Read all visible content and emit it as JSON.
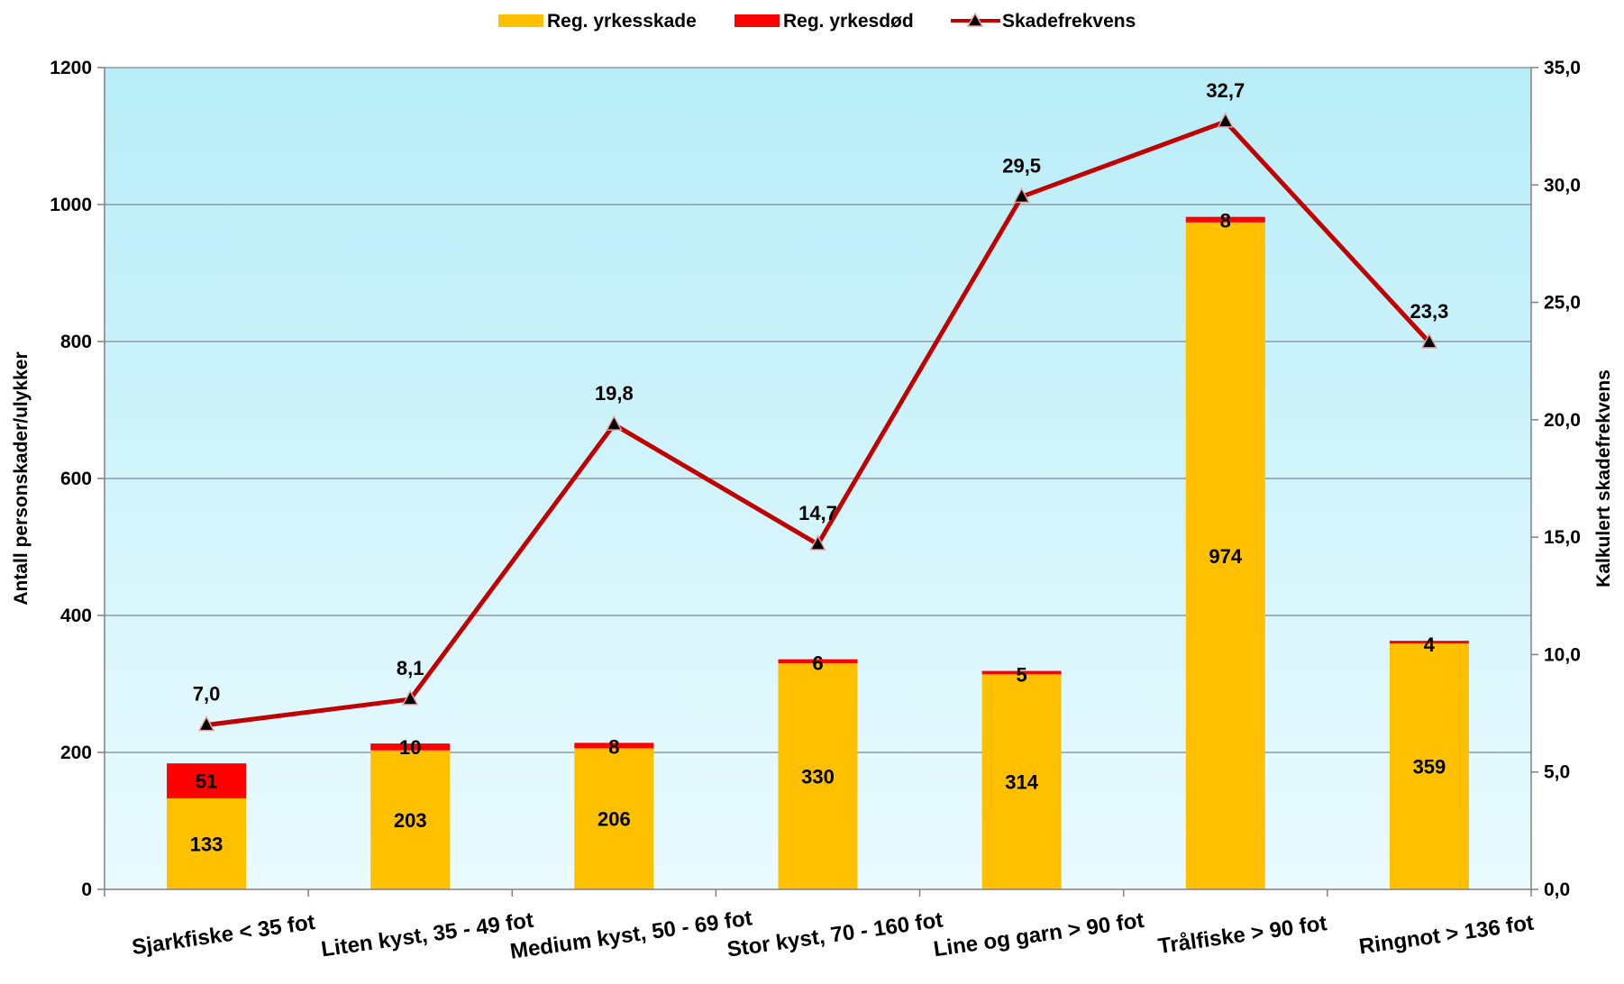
{
  "chart_data": {
    "type": "bar",
    "stacked": true,
    "categories": [
      "Sjarkfiske < 35 fot",
      "Liten kyst, 35 - 49 fot",
      "Medium kyst, 50 - 69 fot",
      "Stor kyst, 70 - 160 fot",
      "Line og garn > 90 fot",
      "Trålfiske > 90 fot",
      "Ringnot > 136 fot"
    ],
    "series": [
      {
        "name": "Reg. yrkesskade",
        "kind": "bar",
        "axis": "left",
        "color": "#FFC000",
        "values": [
          133,
          203,
          206,
          330,
          314,
          974,
          359
        ],
        "labels": [
          "133",
          "203",
          "206",
          "330",
          "314",
          "974",
          "359"
        ]
      },
      {
        "name": "Reg. yrkesdød",
        "kind": "bar",
        "axis": "left",
        "color": "#FF0000",
        "values": [
          51,
          10,
          8,
          6,
          5,
          8,
          4
        ],
        "labels": [
          "51",
          "10",
          "8",
          "6",
          "5",
          "8",
          "4"
        ]
      },
      {
        "name": "Skadefrekvens",
        "kind": "line",
        "axis": "right",
        "color": "#C00000",
        "marker": "triangle",
        "values": [
          7.0,
          8.1,
          19.8,
          14.7,
          29.5,
          32.7,
          23.3
        ],
        "labels": [
          "7,0",
          "8,1",
          "19,8",
          "14,7",
          "29,5",
          "32,7",
          "23,3"
        ]
      }
    ],
    "ylabel": "Antall personskader/ulykker",
    "y2label": "Kalkulert skadefrekvens",
    "ylim": [
      0,
      1200
    ],
    "y2lim": [
      0,
      35
    ],
    "yticks": [
      "0",
      "200",
      "400",
      "600",
      "800",
      "1000",
      "1200"
    ],
    "y2ticks": [
      "0,0",
      "5,0",
      "10,0",
      "15,0",
      "20,0",
      "25,0",
      "30,0",
      "35,0"
    ],
    "grid": true,
    "legend_position": "top",
    "plot_background": "light-blue gradient"
  }
}
